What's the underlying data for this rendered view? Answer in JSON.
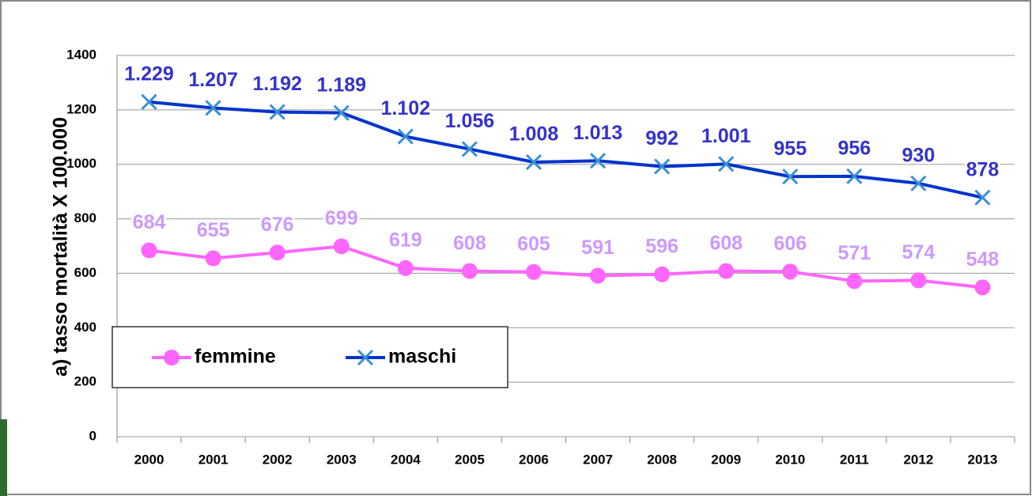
{
  "chart_data": {
    "type": "line",
    "ylabel": "a) tasso mortalità X 100.000",
    "categories": [
      "2000",
      "2001",
      "2002",
      "2003",
      "2004",
      "2005",
      "2006",
      "2007",
      "2008",
      "2009",
      "2010",
      "2011",
      "2012",
      "2013"
    ],
    "series": [
      {
        "name": "femmine",
        "color": "#ff66ff",
        "label_color": "#cc99ff",
        "marker": "circle",
        "values": [
          684,
          655,
          676,
          699,
          619,
          608,
          605,
          591,
          596,
          608,
          606,
          571,
          574,
          548
        ]
      },
      {
        "name": "maschi",
        "color": "#0033cc",
        "label_color": "#3333cc",
        "marker": "x",
        "values": [
          1229,
          1207,
          1192,
          1189,
          1102,
          1056,
          1008,
          1013,
          992,
          1001,
          955,
          956,
          930,
          878
        ],
        "value_labels": [
          "1.229",
          "1.207",
          "1.192",
          "1.189",
          "1.102",
          "1.056",
          "1.008",
          "1.013",
          "992",
          "1.001",
          "955",
          "956",
          "930",
          "878"
        ]
      }
    ],
    "ylim": [
      0,
      1400
    ],
    "yticks": [
      0,
      200,
      400,
      600,
      800,
      1000,
      1200,
      1400
    ],
    "grid": true,
    "legend": "lower left"
  }
}
